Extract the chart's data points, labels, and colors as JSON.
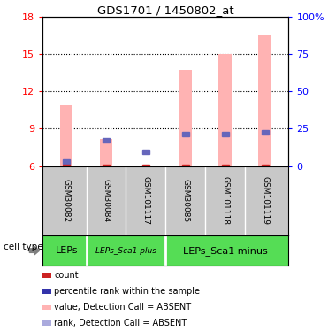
{
  "title": "GDS1701 / 1450802_at",
  "samples": [
    "GSM30082",
    "GSM30084",
    "GSM101117",
    "GSM30085",
    "GSM101118",
    "GSM101119"
  ],
  "cell_types": [
    "LEPs",
    "LEPs_Sca1 plus",
    "LEPs_Sca1 minus"
  ],
  "pink_bar_bottom": 6.0,
  "pink_bars": [
    10.85,
    8.2,
    6.05,
    13.7,
    15.0,
    16.5
  ],
  "blue_squares_y": [
    6.35,
    8.05,
    7.15,
    8.55,
    8.55,
    8.7
  ],
  "ylim_left": [
    6,
    18
  ],
  "ylim_right": [
    0,
    100
  ],
  "yticks_left": [
    6,
    9,
    12,
    15,
    18
  ],
  "yticks_right": [
    0,
    25,
    50,
    75,
    100
  ],
  "ytick_labels_left": [
    "6",
    "9",
    "12",
    "15",
    "18"
  ],
  "ytick_labels_right": [
    "0",
    "25",
    "50",
    "75",
    "100%"
  ],
  "pink_color": "#ffb3b3",
  "blue_color": "#6666bb",
  "red_color": "#cc2222",
  "light_blue_color": "#aaaadd",
  "gray_bg": "#c8c8c8",
  "green_bg": "#55dd55",
  "legend_labels": [
    "count",
    "percentile rank within the sample",
    "value, Detection Call = ABSENT",
    "rank, Detection Call = ABSENT"
  ],
  "legend_colors": [
    "#cc2222",
    "#3333aa",
    "#ffb3b3",
    "#aaaadd"
  ],
  "bar_width": 0.32
}
